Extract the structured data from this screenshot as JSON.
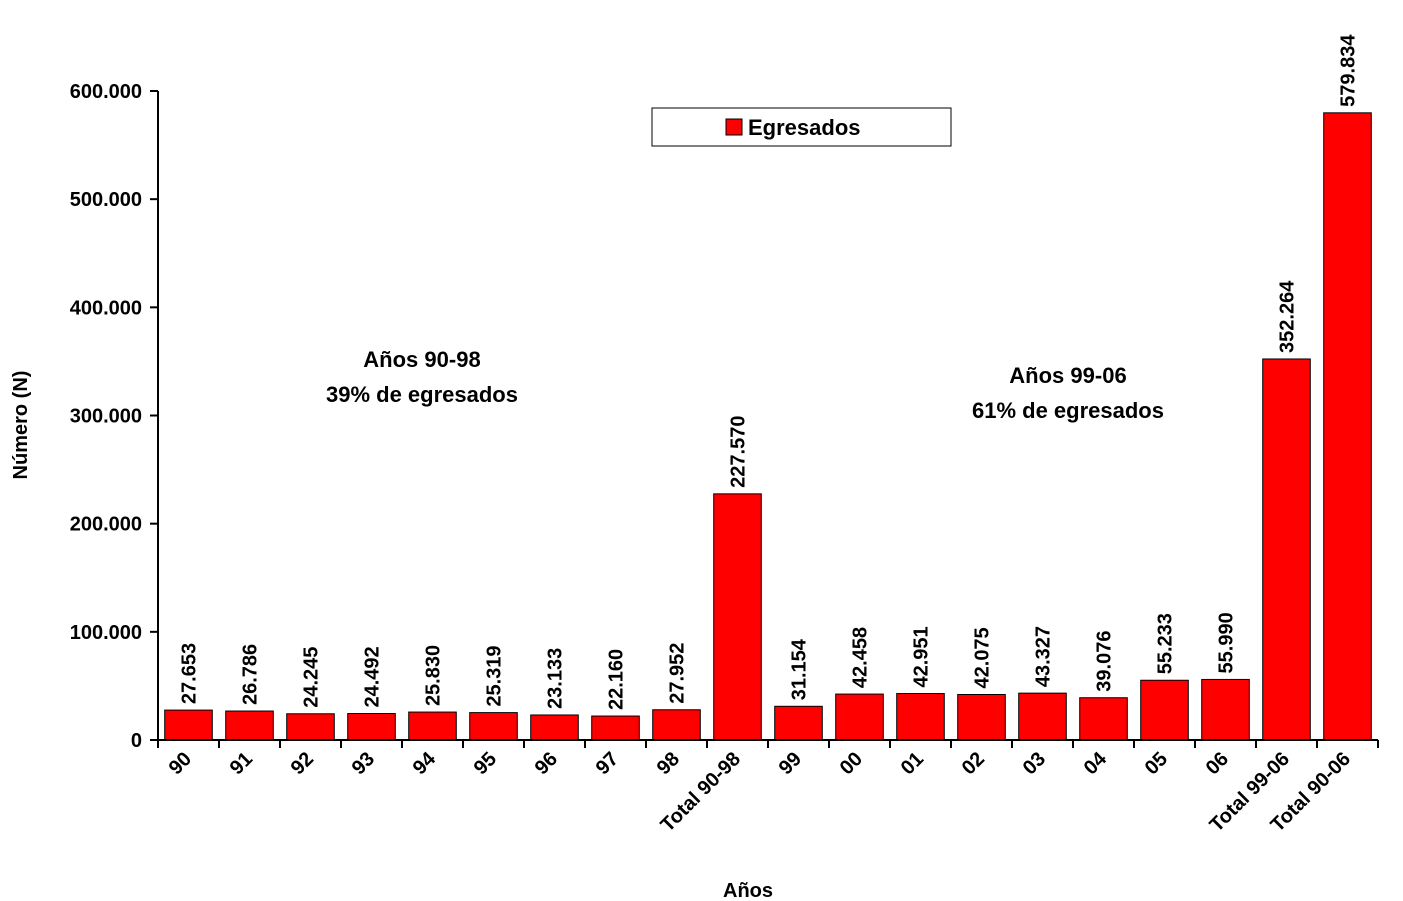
{
  "chart_data": {
    "type": "bar",
    "categories": [
      "90",
      "91",
      "92",
      "93",
      "94",
      "95",
      "96",
      "97",
      "98",
      "Total 90-98",
      "99",
      "00",
      "01",
      "02",
      "03",
      "04",
      "05",
      "06",
      "Total 99-06",
      "Total 90-06"
    ],
    "series": [
      {
        "name": "Egresados",
        "values": [
          27653,
          26786,
          24245,
          24492,
          25830,
          25319,
          23133,
          22160,
          27952,
          227570,
          31154,
          42458,
          42951,
          42075,
          43327,
          39076,
          55233,
          55990,
          352264,
          579834
        ],
        "value_labels": [
          "27.653",
          "26.786",
          "24.245",
          "24.492",
          "25.830",
          "25.319",
          "23.133",
          "22.160",
          "27.952",
          "227.570",
          "31.154",
          "42.458",
          "42.951",
          "42.075",
          "43.327",
          "39.076",
          "55.233",
          "55.990",
          "352.264",
          "579.834"
        ]
      }
    ],
    "xlabel": "Años",
    "ylabel": "Número (N)",
    "ylim": [
      0,
      600000
    ],
    "yticks": [
      0,
      100000,
      200000,
      300000,
      400000,
      500000,
      600000
    ],
    "ytick_labels": [
      "0",
      "100.000",
      "200.000",
      "300.000",
      "400.000",
      "500.000",
      "600.000"
    ],
    "legend": {
      "entries": [
        "Egresados"
      ],
      "placement": "top-center"
    },
    "annotations": [
      {
        "lines": [
          "Años 90-98",
          "39% de egresados"
        ]
      },
      {
        "lines": [
          "Años 99-06",
          "61% de egresados"
        ]
      }
    ],
    "grid": false,
    "colors": {
      "bar": "#ff0000",
      "bar_edge": "#000000"
    }
  }
}
